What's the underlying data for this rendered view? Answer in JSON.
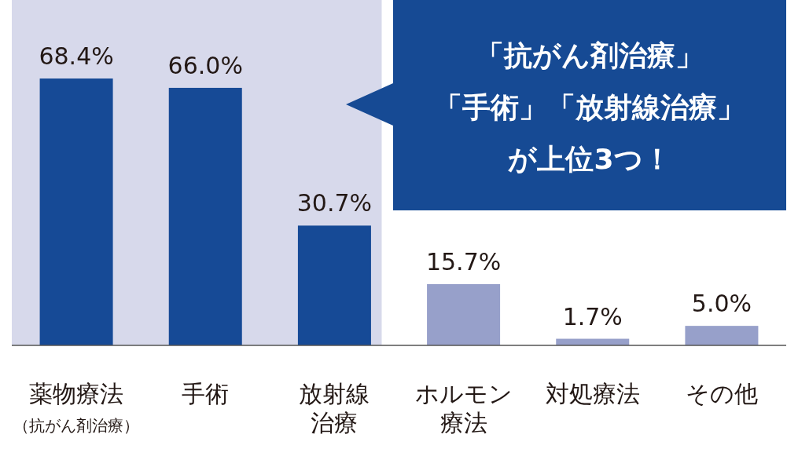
{
  "chart_data": {
    "type": "bar",
    "categories": [
      "薬物療法（抗がん剤治療）",
      "手術",
      "放射線治療",
      "ホルモン療法",
      "対処療法",
      "その他"
    ],
    "values": [
      68.4,
      66.0,
      30.7,
      15.7,
      1.7,
      5.0
    ],
    "colors": [
      "#164a96",
      "#164a96",
      "#164a96",
      "#97a0ca",
      "#97a0ca",
      "#97a0ca"
    ],
    "value_labels": [
      "68.4%",
      "66.0%",
      "30.7%",
      "15.7%",
      "1.7%",
      "5.0%"
    ],
    "relative": false,
    "bands": [
      {
        "axis": "x",
        "from": "薬物療法（抗がん剤治療）",
        "to": "放射線治療",
        "color": "#d7d9eb"
      }
    ],
    "annotations": [
      "「抗がん剤治療」「手術」「放射線治療」が上位3つ！"
    ],
    "grid": false
  }
}
